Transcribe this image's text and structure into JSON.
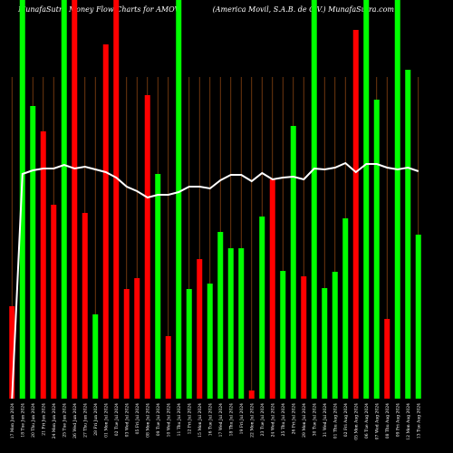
{
  "chart_data": {
    "type": "bar",
    "title_left": "MunafaSutra Money Flow Charts for AMOV",
    "title_right": "(America Movil, S.A.B. de C.V.) MunafaSutra.com",
    "categories": [
      "17 Mon Jun 2024",
      "18 Tue Jun 2024",
      "20 Thu Jun 2024",
      "21 Fri Jun 2024",
      "24 Mon Jun 2024",
      "25 Tue Jun 2024",
      "26 Wed Jun 2024",
      "27 Thu Jun 2024",
      "28 Fri Jun 2024",
      "01 Mon Jul 2024",
      "02 Tue Jul 2024",
      "03 Wed Jul 2024",
      "05 Fri Jul 2024",
      "08 Mon Jul 2024",
      "09 Tue Jul 2024",
      "10 Wed Jul 2024",
      "11 Thu Jul 2024",
      "12 Fri Jul 2024",
      "15 Mon Jul 2024",
      "16 Tue Jul 2024",
      "17 Wed Jul 2024",
      "18 Thu Jul 2024",
      "19 Fri Jul 2024",
      "22 Mon Jul 2024",
      "23 Tue Jul 2024",
      "24 Wed Jul 2024",
      "25 Thu Jul 2024",
      "26 Fri Jul 2024",
      "29 Mon Jul 2024",
      "30 Tue Jul 2024",
      "31 Wed Jul 2024",
      "01 Thu Aug 2024",
      "02 Fri Aug 2024",
      "05 Mon Aug 2024",
      "06 Tue Aug 2024",
      "07 Wed Aug 2024",
      "08 Thu Aug 2024",
      "09 Fri Aug 2024",
      "12 Mon Aug 2024",
      "13 Tue Aug 2024"
    ],
    "values": [
      102,
      440,
      323,
      295,
      214,
      440,
      440,
      205,
      93,
      391,
      440,
      121,
      133,
      335,
      248,
      69,
      440,
      121,
      154,
      127,
      184,
      166,
      166,
      9,
      201,
      242,
      141,
      301,
      135,
      440,
      122,
      140,
      199,
      407,
      440,
      330,
      88,
      440,
      363,
      181
    ],
    "bar_colors": [
      "#ff0000",
      "#00ff00",
      "#00ff00",
      "#ff0000",
      "#ff0000",
      "#00ff00",
      "#ff0000",
      "#ff0000",
      "#00ff00",
      "#ff0000",
      "#ff0000",
      "#ff0000",
      "#ff0000",
      "#ff0000",
      "#00ff00",
      "#ff0000",
      "#00ff00",
      "#00ff00",
      "#ff0000",
      "#00ff00",
      "#00ff00",
      "#00ff00",
      "#00ff00",
      "#ff0000",
      "#00ff00",
      "#ff0000",
      "#00ff00",
      "#00ff00",
      "#ff0000",
      "#00ff00",
      "#00ff00",
      "#00ff00",
      "#00ff00",
      "#ff0000",
      "#00ff00",
      "#00ff00",
      "#ff0000",
      "#00ff00",
      "#00ff00",
      "#00ff00"
    ],
    "line": {
      "color": "#ffffff",
      "values": [
        0,
        248,
        252,
        254,
        254,
        258,
        254,
        256,
        253,
        250,
        244,
        234,
        229,
        222,
        225,
        225,
        228,
        234,
        234,
        232,
        241,
        247,
        247,
        240,
        249,
        242,
        244,
        245,
        242,
        254,
        253,
        255,
        260,
        250,
        259,
        259,
        255,
        253,
        255,
        251
      ]
    },
    "ylim": [
      0,
      440
    ],
    "grid": true,
    "grid_color": "#8b4513"
  }
}
